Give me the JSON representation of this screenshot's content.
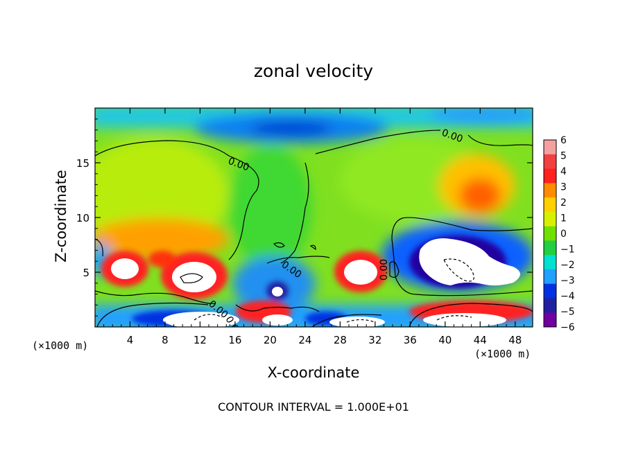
{
  "chart_data": {
    "type": "heatmap",
    "title": "zonal velocity",
    "xlabel": "X-coordinate",
    "ylabel": "Z-coordinate",
    "x_unit_left": "(×1000 m)",
    "x_unit_right": "(×1000 m)",
    "xlim": [
      0,
      50
    ],
    "ylim": [
      0,
      20
    ],
    "x_ticks": [
      4,
      8,
      12,
      16,
      20,
      24,
      28,
      32,
      36,
      40,
      44,
      48
    ],
    "x_tick_labels": [
      "4",
      "8",
      "12",
      "16",
      "20",
      "24",
      "28",
      "32",
      "36",
      "40",
      "44",
      "48"
    ],
    "y_ticks": [
      5,
      10,
      15
    ],
    "y_tick_labels": [
      "5",
      "10",
      "15"
    ],
    "colorbar": {
      "values": [
        6,
        5,
        4,
        3,
        2,
        1,
        0,
        -1,
        -2,
        -3,
        -4,
        -5,
        -6
      ],
      "labels": [
        "6",
        "5",
        "4",
        "3",
        "2",
        "1",
        "0",
        "−1",
        "−2",
        "−3",
        "−4",
        "−5",
        "−6"
      ],
      "colors": [
        "#f5a0a0",
        "#f04040",
        "#ff2020",
        "#ff8c00",
        "#ffd000",
        "#d8f000",
        "#70e000",
        "#20d040",
        "#00e0d0",
        "#20a0ff",
        "#0030e0",
        "#2020a0",
        "#7000a0"
      ]
    },
    "contour_labels": [
      "0.00",
      "0.00",
      "0.00",
      "0.00",
      "0.00",
      "0.00"
    ],
    "contour_note": "CONTOUR INTERVAL = 1.000E+01",
    "features": [
      {
        "kind": "jet_negative",
        "x": 22,
        "z": 18,
        "value": -4
      },
      {
        "kind": "max",
        "x": 44,
        "z": 11.5,
        "value": 4
      },
      {
        "kind": "max",
        "x": 5,
        "z": 5.5,
        "value": 6
      },
      {
        "kind": "max",
        "x": 11,
        "z": 5,
        "value": 6
      },
      {
        "kind": "max",
        "x": 30,
        "z": 5.5,
        "value": 6
      },
      {
        "kind": "min",
        "x": 42,
        "z": 6,
        "value": -6
      },
      {
        "kind": "min",
        "x": 20.5,
        "z": 3,
        "value": -5
      },
      {
        "kind": "min",
        "x": 36,
        "z": 1,
        "value": -6
      }
    ]
  }
}
